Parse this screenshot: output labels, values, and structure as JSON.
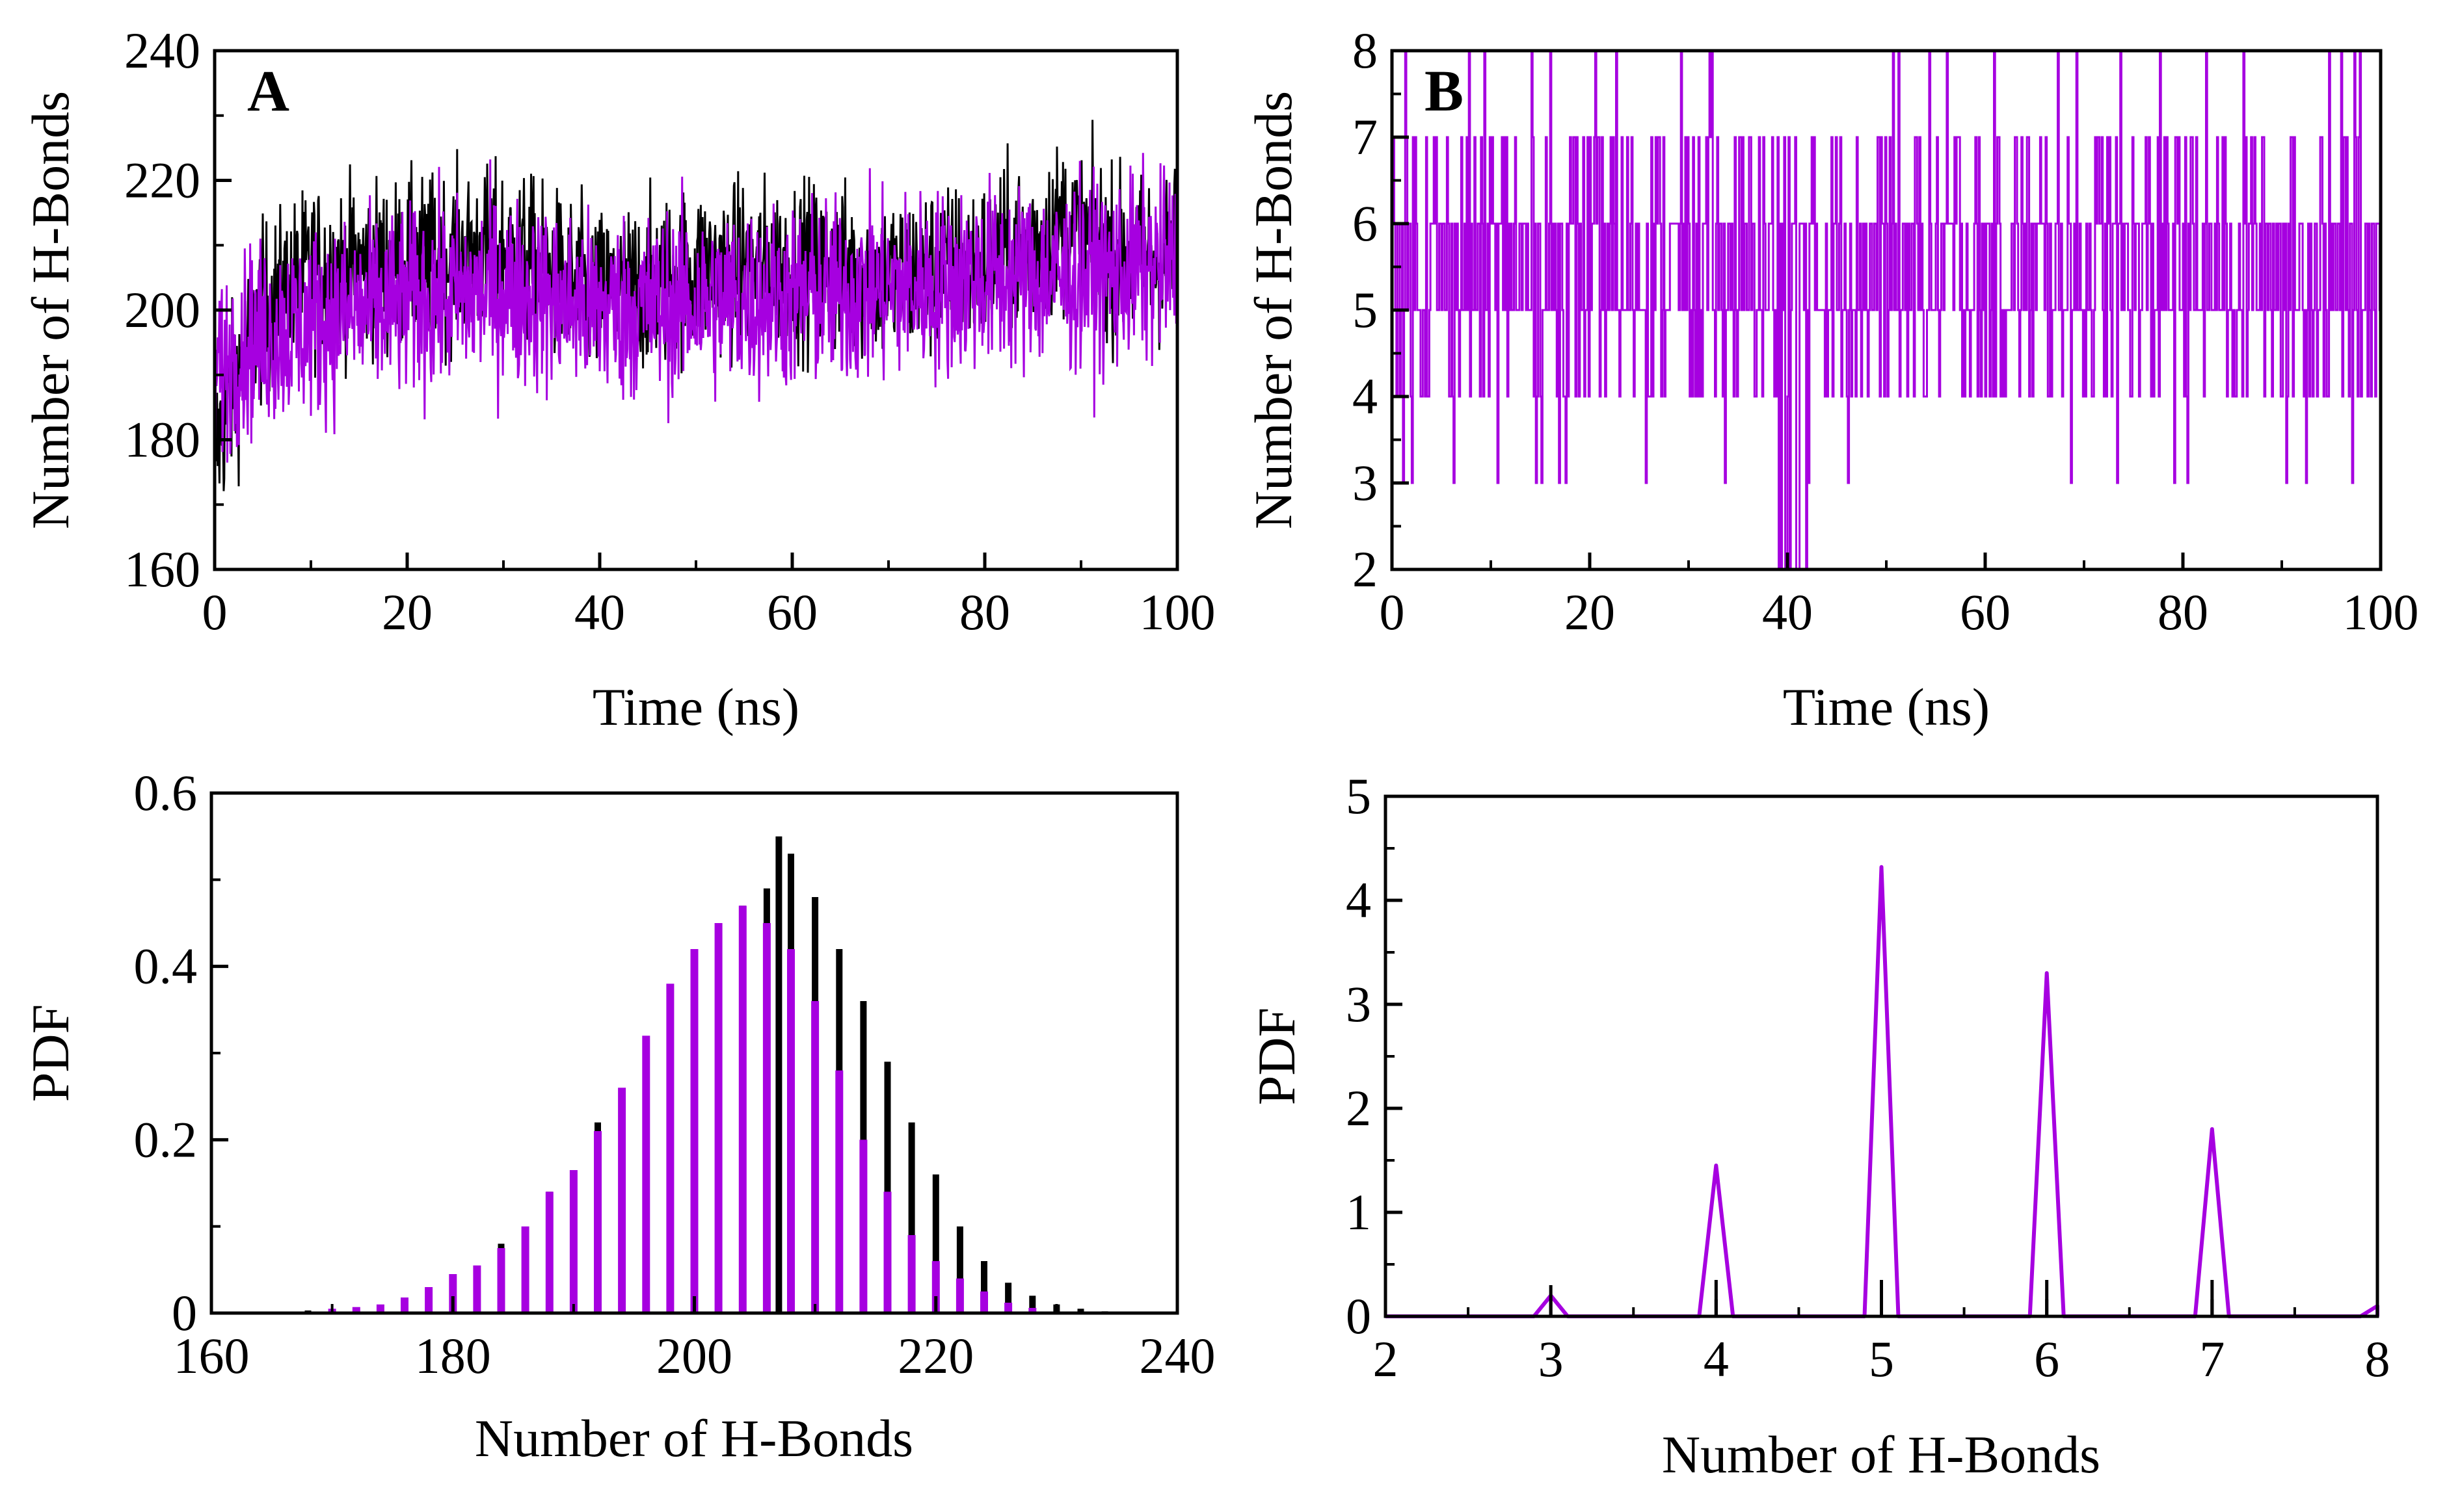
{
  "colors": {
    "magenta": "#a600e0",
    "black": "#000000"
  },
  "chart_data": [
    {
      "id": "A_top",
      "type": "line",
      "panel_label": "A",
      "xlabel": "Time (ns)",
      "ylabel": "Number of H-Bonds",
      "xlim": [
        0,
        100
      ],
      "ylim": [
        160,
        240
      ],
      "xticks": [
        "0",
        "20",
        "40",
        "60",
        "80",
        "100"
      ],
      "yticks": [
        "160",
        "180",
        "200",
        "220",
        "240"
      ],
      "series": [
        {
          "color": "black",
          "trend": [
            [
              0,
              178
            ],
            [
              2,
              188
            ],
            [
              5,
              200
            ],
            [
              10,
              206
            ],
            [
              20,
              207
            ],
            [
              30,
              209
            ],
            [
              40,
              202
            ],
            [
              50,
              206
            ],
            [
              60,
              207
            ],
            [
              70,
              205
            ],
            [
              80,
              207
            ],
            [
              88,
              213
            ],
            [
              95,
              207
            ],
            [
              100,
              209
            ]
          ],
          "spread": 9
        },
        {
          "color": "magenta",
          "trend": [
            [
              0,
              190
            ],
            [
              3,
              195
            ],
            [
              10,
              198
            ],
            [
              20,
              201
            ],
            [
              30,
              203
            ],
            [
              40,
              200
            ],
            [
              50,
              201
            ],
            [
              60,
              202
            ],
            [
              70,
              203
            ],
            [
              80,
              205
            ],
            [
              90,
              205
            ],
            [
              100,
              207
            ]
          ],
          "spread": 10
        }
      ]
    },
    {
      "id": "B_top",
      "type": "line",
      "panel_label": "B",
      "xlabel": "Time (ns)",
      "ylabel": "Number of H-Bonds",
      "xlim": [
        0,
        100
      ],
      "ylim": [
        2,
        8
      ],
      "xticks": [
        "0",
        "20",
        "40",
        "60",
        "80",
        "100"
      ],
      "yticks": [
        "2",
        "3",
        "4",
        "5",
        "6",
        "7",
        "8"
      ],
      "series": [
        {
          "color": "magenta",
          "discrete_levels": [
            3,
            4,
            5,
            6,
            7,
            8
          ],
          "level_weights": [
            0.02,
            0.15,
            0.43,
            0.33,
            0.17,
            0.02
          ]
        }
      ]
    },
    {
      "id": "A_bottom",
      "type": "bar",
      "xlabel": "Number of H-Bonds",
      "ylabel": "PDF",
      "xlim": [
        160,
        240
      ],
      "ylim": [
        0,
        0.6
      ],
      "xticks": [
        "160",
        "180",
        "200",
        "220",
        "240"
      ],
      "yticks": [
        "0",
        "0.2",
        "0.4",
        "0.6"
      ],
      "series": [
        {
          "color": "black",
          "x": [
            164,
            168,
            172,
            176,
            180,
            184,
            188,
            192,
            196,
            200,
            204,
            206,
            207,
            208,
            210,
            212,
            214,
            216,
            218,
            220,
            222,
            224,
            226,
            228,
            230,
            232,
            234
          ],
          "values": [
            0.001,
            0.003,
            0.006,
            0.015,
            0.04,
            0.08,
            0.14,
            0.22,
            0.31,
            0.4,
            0.47,
            0.49,
            0.55,
            0.53,
            0.48,
            0.42,
            0.36,
            0.29,
            0.22,
            0.16,
            0.1,
            0.06,
            0.035,
            0.02,
            0.01,
            0.005,
            0.002
          ]
        },
        {
          "color": "magenta",
          "x": [
            170,
            172,
            174,
            176,
            178,
            180,
            182,
            184,
            186,
            188,
            190,
            192,
            194,
            196,
            198,
            200,
            202,
            204,
            206,
            208,
            210,
            212,
            214,
            216,
            218,
            220,
            222,
            224,
            226,
            228
          ],
          "values": [
            0.005,
            0.007,
            0.01,
            0.018,
            0.03,
            0.045,
            0.055,
            0.075,
            0.1,
            0.14,
            0.165,
            0.21,
            0.26,
            0.32,
            0.38,
            0.42,
            0.45,
            0.47,
            0.45,
            0.42,
            0.36,
            0.28,
            0.2,
            0.14,
            0.09,
            0.06,
            0.04,
            0.025,
            0.012,
            0.006
          ]
        }
      ]
    },
    {
      "id": "B_bottom",
      "type": "line",
      "xlabel": "Number of H-Bonds",
      "ylabel": "PDF",
      "xlim": [
        2,
        8
      ],
      "ylim": [
        0,
        5
      ],
      "xticks": [
        "2",
        "3",
        "4",
        "5",
        "6",
        "7",
        "8"
      ],
      "yticks": [
        "0",
        "1",
        "2",
        "3",
        "4",
        "5"
      ],
      "series": [
        {
          "color": "magenta",
          "peaks": [
            [
              3,
              0.2
            ],
            [
              4,
              1.45
            ],
            [
              5,
              4.32
            ],
            [
              6,
              3.3
            ],
            [
              7,
              1.8
            ],
            [
              8,
              0.1
            ]
          ]
        },
        {
          "color": "black",
          "peaks": [
            [
              3,
              0.3
            ],
            [
              4,
              0.35
            ],
            [
              5,
              0.35
            ],
            [
              6,
              0.35
            ],
            [
              7,
              0.35
            ]
          ]
        }
      ]
    }
  ]
}
